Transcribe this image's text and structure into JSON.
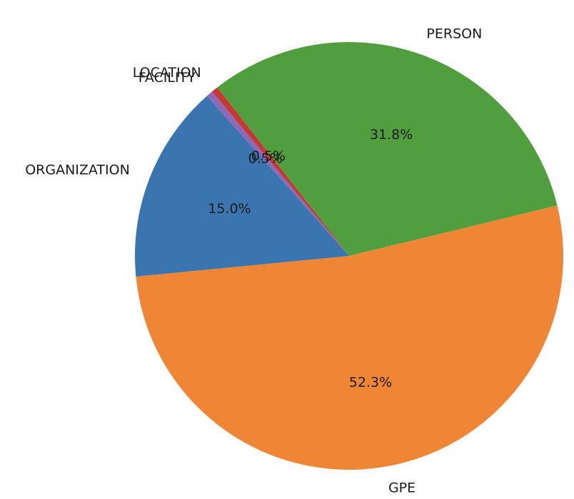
{
  "chart_data": {
    "type": "pie",
    "categories": [
      "PERSON",
      "GPE",
      "ORGANIZATION",
      "FACILITY",
      "LOCATION"
    ],
    "values": [
      31.8,
      52.3,
      15.0,
      0.5,
      0.5
    ],
    "value_labels": [
      "31.8%",
      "52.3%",
      "15.0%",
      "0.5%",
      "0.5%"
    ],
    "colors": [
      "#519e3e",
      "#ef8636",
      "#3b75af",
      "#8d69b8",
      "#c53932"
    ],
    "start_angle_deg": 128,
    "direction": "clockwise",
    "title": "",
    "legend": "none"
  }
}
